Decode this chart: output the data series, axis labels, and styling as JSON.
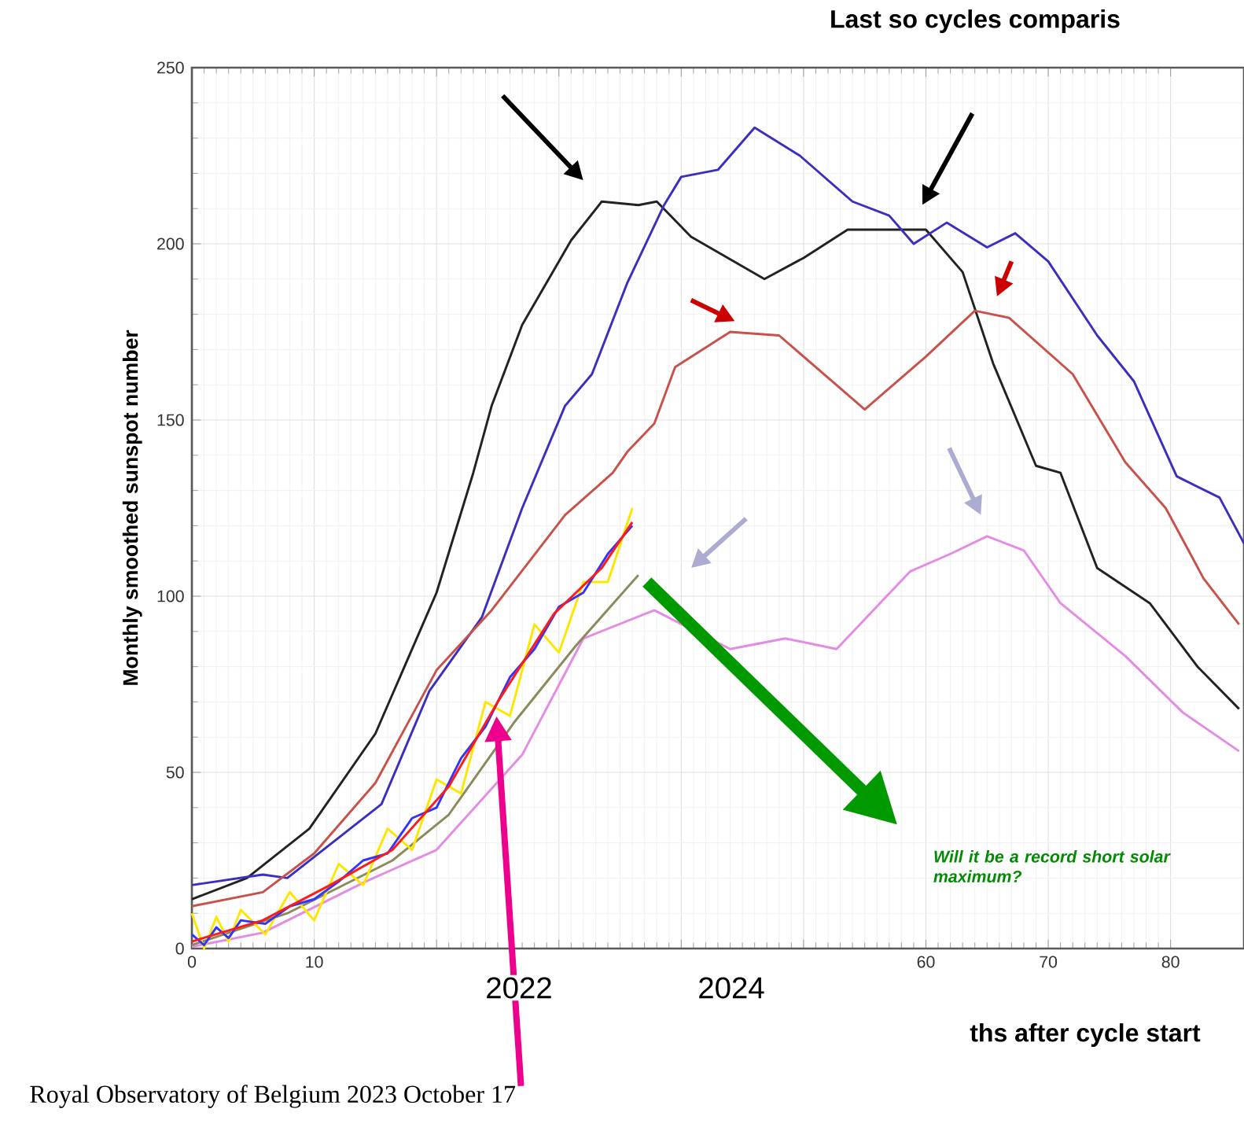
{
  "chart_data": {
    "type": "line",
    "title": "Last so cycles comparis",
    "xlabel": "ths after cycle start",
    "ylabel": "Monthly smoothed sunspot number",
    "xlim": [
      0,
      86
    ],
    "ylim": [
      0,
      250
    ],
    "xticks": [
      0,
      10,
      {
        "value": 20,
        "label": null
      },
      {
        "value": 30,
        "label": null
      },
      {
        "value": 40,
        "label": null
      },
      {
        "value": 50,
        "label": null
      },
      60,
      70,
      80
    ],
    "yticks": [
      0,
      50,
      100,
      150,
      200,
      250
    ],
    "grid": true,
    "marker": "none",
    "line_style": "solid",
    "annotations": [
      "2022",
      "2024",
      "Will it be a record short solar maximum?",
      "Royal Observatory of Belgium  2023 October 17"
    ],
    "series": [
      {
        "color": "#222222",
        "x": [
          0,
          4.5,
          9.6,
          15,
          20,
          23,
          24.5,
          27,
          31,
          33.5,
          36.5,
          38,
          40.8,
          46.8,
          50,
          53.6,
          60,
          63,
          65.5,
          69,
          71,
          74,
          78.3,
          82.2,
          85.6
        ],
        "values": [
          14,
          20,
          34,
          61,
          101,
          135,
          154,
          177,
          201,
          212,
          211,
          212,
          202,
          190,
          196,
          204,
          204,
          192,
          166,
          137,
          135,
          108,
          98,
          80,
          68
        ]
      },
      {
        "color": "#3a2fbf",
        "x": [
          0,
          5.8,
          7.8,
          15.5,
          19.4,
          23.7,
          27,
          30.5,
          32.7,
          35.6,
          38.6,
          40,
          43,
          46,
          49.7,
          54,
          57,
          59,
          61.7,
          65,
          67.3,
          70,
          74,
          77,
          80.5,
          84,
          86
        ],
        "values": [
          18,
          21,
          20,
          41,
          73,
          94,
          125,
          154,
          163,
          189,
          211,
          219,
          221,
          233,
          225,
          212,
          208,
          200,
          206,
          199,
          203,
          195,
          174,
          161,
          134,
          128,
          115
        ]
      },
      {
        "color": "#c8524a",
        "x": [
          0,
          5.8,
          10,
          15,
          20,
          24.5,
          30.5,
          34.4,
          35.6,
          37.8,
          39.5,
          44,
          48,
          55,
          60,
          64,
          66.8,
          72,
          76.3,
          79.6,
          82.7,
          85.6
        ],
        "values": [
          12,
          16,
          27,
          47,
          79,
          96,
          123,
          135,
          141,
          149,
          165,
          175,
          174,
          153,
          168,
          181,
          179,
          163,
          138,
          125,
          105,
          92
        ]
      },
      {
        "color": "#e48be4",
        "x": [
          0,
          5.8,
          14.2,
          20,
          27,
          32,
          37.8,
          44,
          48.5,
          52.7,
          58.7,
          62,
          65,
          68,
          71,
          76.3,
          81,
          85.6
        ],
        "values": [
          0.5,
          4.5,
          19,
          28,
          55,
          88,
          96,
          85,
          88,
          85,
          107,
          112,
          117,
          113,
          98,
          83,
          67,
          56
        ]
      },
      {
        "color": "#8a8a5a",
        "x": [
          0,
          7.8,
          16.4,
          21,
          26.3,
          31.4,
          36.5
        ],
        "values": [
          1,
          10,
          25,
          38,
          64,
          86,
          106
        ]
      },
      {
        "color": "#ffe600",
        "x": [
          0,
          1,
          2,
          3,
          4,
          6,
          8,
          10,
          12,
          14,
          16,
          18,
          20,
          22,
          24,
          26,
          28,
          30,
          32,
          34,
          36
        ],
        "values": [
          10,
          0,
          9,
          2,
          11,
          4,
          16,
          8,
          24,
          18,
          34,
          28,
          48,
          44,
          70,
          66,
          92,
          84,
          104,
          104,
          125
        ]
      },
      {
        "color": "#3333ff",
        "x": [
          0,
          1,
          2,
          3,
          4,
          6,
          8,
          10,
          12,
          14,
          16,
          18,
          20,
          22,
          24,
          26,
          28,
          30,
          32,
          34,
          36
        ],
        "values": [
          4,
          1,
          6,
          3,
          8,
          7,
          12,
          14,
          19,
          25,
          27,
          37,
          40,
          54,
          63,
          77,
          85,
          97,
          101,
          112,
          120
        ]
      },
      {
        "color": "#ff1a1a",
        "x": [
          0,
          5.8,
          11.3,
          16.4,
          21,
          25,
          29.6,
          33.5,
          36
        ],
        "values": [
          2,
          8,
          18,
          28,
          46,
          70,
          95,
          108,
          121
        ]
      }
    ]
  }
}
